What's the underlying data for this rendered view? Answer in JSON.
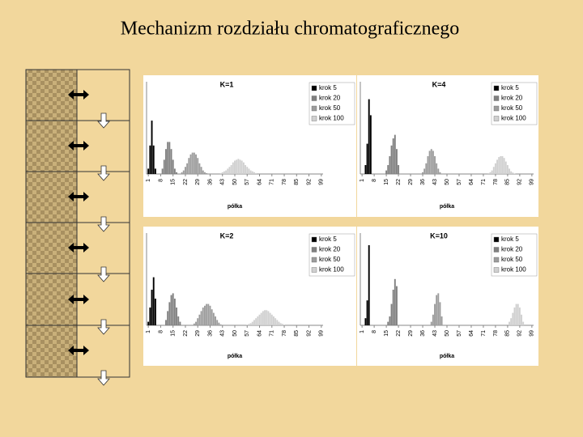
{
  "title": "Mechanizm rozdziału chromatograficznego",
  "chart_data": [
    {
      "type": "bar",
      "title": "K=1",
      "x_label": "półka",
      "xlim": [
        0,
        100
      ],
      "ylim": [
        0,
        0.5
      ],
      "xticks": [
        1,
        8,
        15,
        22,
        29,
        36,
        43,
        50,
        57,
        64,
        71,
        78,
        85,
        92,
        99
      ],
      "series": [
        {
          "name": "krok 5",
          "color": "#000000",
          "x": [
            1,
            2,
            3,
            4,
            5
          ],
          "values": [
            0.03,
            0.16,
            0.3,
            0.16,
            0.03
          ]
        },
        {
          "name": "krok 20",
          "color": "#808080",
          "x": [
            9,
            10,
            11,
            12,
            13,
            14,
            15,
            16,
            17
          ],
          "values": [
            0.03,
            0.08,
            0.14,
            0.18,
            0.18,
            0.14,
            0.08,
            0.03,
            0.01
          ]
        },
        {
          "name": "krok 50",
          "color": "#9c9c9c",
          "x": [
            20,
            21,
            22,
            23,
            24,
            25,
            26,
            27,
            28,
            29,
            30,
            31,
            32,
            33,
            34
          ],
          "values": [
            0.01,
            0.02,
            0.04,
            0.06,
            0.09,
            0.11,
            0.12,
            0.12,
            0.11,
            0.09,
            0.06,
            0.04,
            0.02,
            0.01,
            0.005
          ]
        },
        {
          "name": "krok 100",
          "color": "#d0d0d0",
          "x": [
            42,
            43,
            44,
            45,
            46,
            47,
            48,
            49,
            50,
            51,
            52,
            53,
            54,
            55,
            56,
            57,
            58,
            59,
            60,
            61,
            62
          ],
          "values": [
            0.005,
            0.01,
            0.015,
            0.02,
            0.03,
            0.04,
            0.05,
            0.065,
            0.075,
            0.08,
            0.085,
            0.08,
            0.075,
            0.065,
            0.05,
            0.04,
            0.03,
            0.02,
            0.015,
            0.01,
            0.005
          ]
        }
      ]
    },
    {
      "type": "bar",
      "title": "K=4",
      "x_label": "półka",
      "xlim": [
        0,
        100
      ],
      "ylim": [
        0,
        0.5
      ],
      "xticks": [
        1,
        8,
        15,
        22,
        29,
        36,
        43,
        50,
        57,
        64,
        71,
        78,
        85,
        92,
        99
      ],
      "series": [
        {
          "name": "krok 5",
          "color": "#000000",
          "x": [
            3,
            4,
            5,
            6
          ],
          "values": [
            0.05,
            0.17,
            0.42,
            0.33
          ]
        },
        {
          "name": "krok 20",
          "color": "#808080",
          "x": [
            15,
            16,
            17,
            18,
            19,
            20,
            21,
            22
          ],
          "values": [
            0.02,
            0.05,
            0.1,
            0.16,
            0.2,
            0.22,
            0.14,
            0.05
          ]
        },
        {
          "name": "krok 50",
          "color": "#9c9c9c",
          "x": [
            36,
            37,
            38,
            39,
            40,
            41,
            42,
            43,
            44,
            45,
            46
          ],
          "values": [
            0.01,
            0.03,
            0.06,
            0.1,
            0.13,
            0.14,
            0.13,
            0.1,
            0.06,
            0.03,
            0.01
          ]
        },
        {
          "name": "krok 100",
          "color": "#d0d0d0",
          "x": [
            74,
            75,
            76,
            77,
            78,
            79,
            80,
            81,
            82,
            83,
            84,
            85,
            86,
            87,
            88,
            89
          ],
          "values": [
            0.005,
            0.01,
            0.02,
            0.04,
            0.06,
            0.08,
            0.095,
            0.1,
            0.1,
            0.09,
            0.07,
            0.05,
            0.03,
            0.015,
            0.008,
            0.003
          ]
        }
      ]
    },
    {
      "type": "bar",
      "title": "K=2",
      "x_label": "półka",
      "xlim": [
        0,
        100
      ],
      "ylim": [
        0,
        0.5
      ],
      "xticks": [
        1,
        8,
        15,
        22,
        29,
        36,
        43,
        50,
        57,
        64,
        71,
        78,
        85,
        92,
        99
      ],
      "series": [
        {
          "name": "krok 5",
          "color": "#000000",
          "x": [
            1,
            2,
            3,
            4,
            5
          ],
          "values": [
            0.02,
            0.1,
            0.2,
            0.27,
            0.15
          ]
        },
        {
          "name": "krok 20",
          "color": "#808080",
          "x": [
            11,
            12,
            13,
            14,
            15,
            16,
            17,
            18,
            19
          ],
          "values": [
            0.03,
            0.08,
            0.13,
            0.17,
            0.18,
            0.15,
            0.1,
            0.05,
            0.02
          ]
        },
        {
          "name": "krok 50",
          "color": "#9c9c9c",
          "x": [
            27,
            28,
            29,
            30,
            31,
            32,
            33,
            34,
            35,
            36,
            37,
            38,
            39,
            40,
            41,
            42
          ],
          "values": [
            0.01,
            0.02,
            0.04,
            0.06,
            0.08,
            0.1,
            0.11,
            0.12,
            0.12,
            0.11,
            0.09,
            0.07,
            0.05,
            0.03,
            0.015,
            0.005
          ]
        },
        {
          "name": "krok 100",
          "color": "#d0d0d0",
          "x": [
            57,
            58,
            59,
            60,
            61,
            62,
            63,
            64,
            65,
            66,
            67,
            68,
            69,
            70,
            71,
            72,
            73,
            74,
            75,
            76,
            77,
            78
          ],
          "values": [
            0.004,
            0.008,
            0.012,
            0.02,
            0.03,
            0.04,
            0.05,
            0.06,
            0.07,
            0.08,
            0.085,
            0.085,
            0.08,
            0.07,
            0.06,
            0.05,
            0.04,
            0.03,
            0.02,
            0.012,
            0.008,
            0.004
          ]
        }
      ]
    },
    {
      "type": "bar",
      "title": "K=10",
      "x_label": "półka",
      "xlim": [
        0,
        100
      ],
      "ylim": [
        0,
        0.5
      ],
      "xticks": [
        1,
        8,
        15,
        22,
        29,
        36,
        43,
        50,
        57,
        64,
        71,
        78,
        85,
        92,
        99
      ],
      "series": [
        {
          "name": "krok 5",
          "color": "#000000",
          "x": [
            3,
            4,
            5
          ],
          "values": [
            0.04,
            0.14,
            0.45
          ]
        },
        {
          "name": "krok 20",
          "color": "#808080",
          "x": [
            16,
            17,
            18,
            19,
            20,
            21
          ],
          "values": [
            0.02,
            0.05,
            0.12,
            0.2,
            0.26,
            0.22
          ]
        },
        {
          "name": "krok 50",
          "color": "#9c9c9c",
          "x": [
            41,
            42,
            43,
            44,
            45,
            46,
            47
          ],
          "values": [
            0.02,
            0.06,
            0.12,
            0.17,
            0.18,
            0.13,
            0.05
          ]
        },
        {
          "name": "krok 100",
          "color": "#d0d0d0",
          "x": [
            86,
            87,
            88,
            89,
            90,
            91,
            92,
            93,
            94
          ],
          "values": [
            0.02,
            0.04,
            0.07,
            0.1,
            0.12,
            0.12,
            0.1,
            0.06,
            0.02
          ]
        }
      ]
    }
  ]
}
